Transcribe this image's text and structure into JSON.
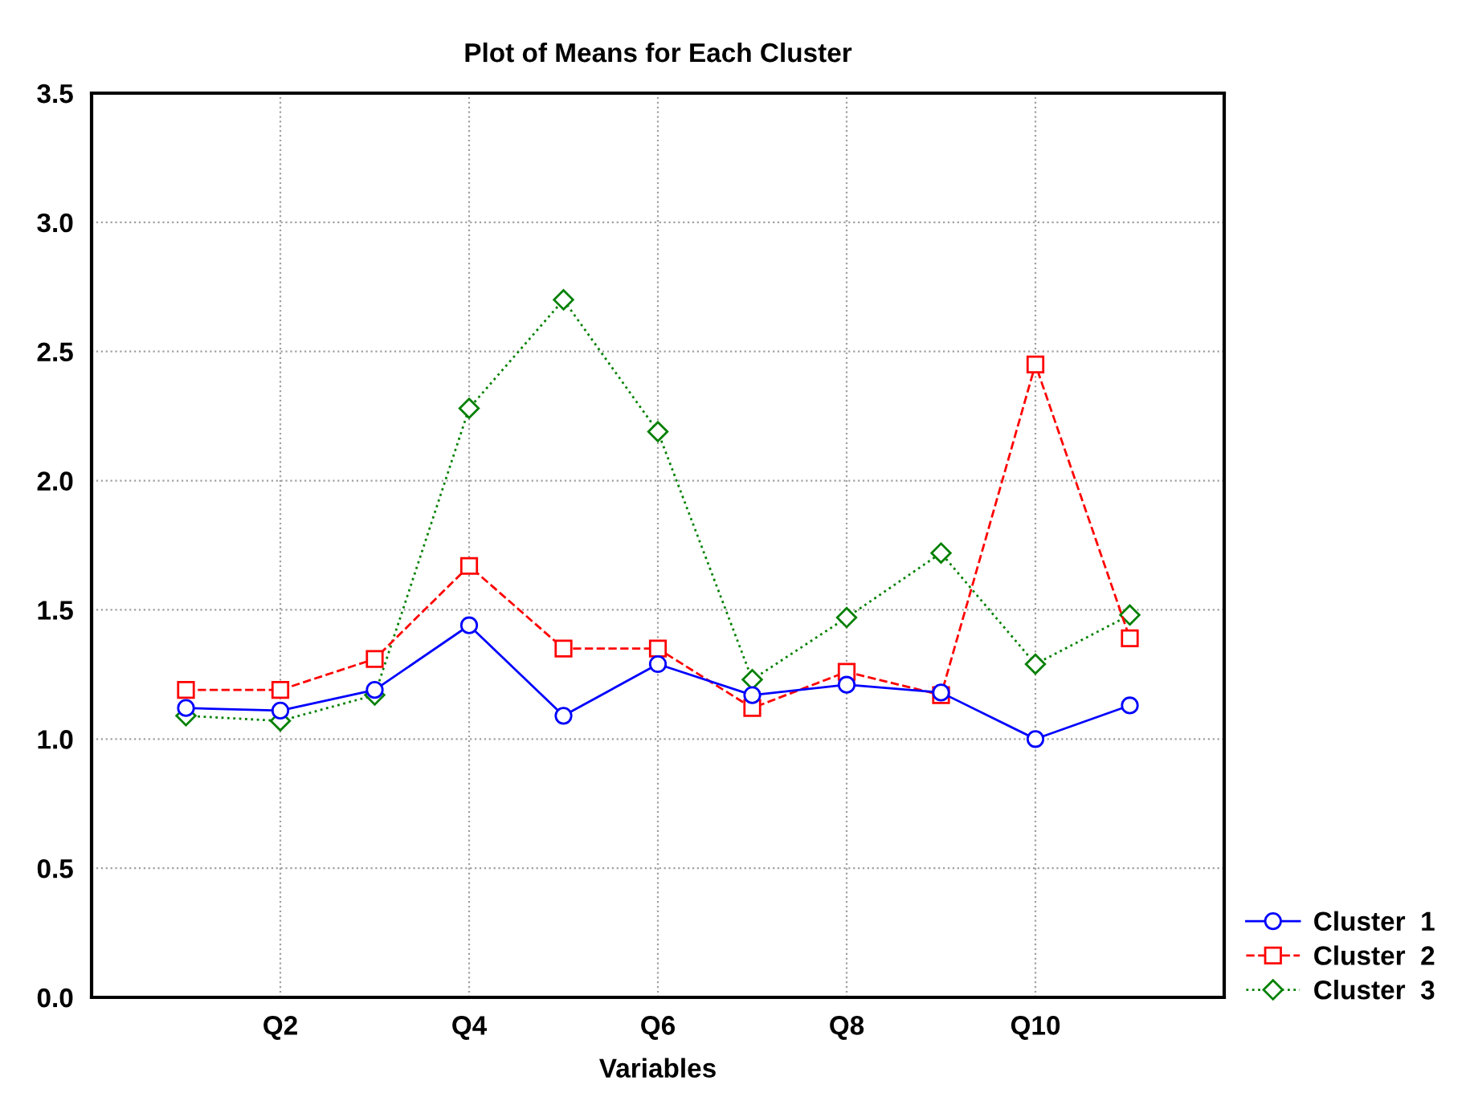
{
  "chart_data": {
    "type": "line",
    "title": "Plot of Means for Each Cluster",
    "xlabel": "Variables",
    "categories": [
      null,
      "Q2",
      null,
      "Q4",
      null,
      "Q6",
      null,
      "Q8",
      null,
      "Q10",
      null
    ],
    "series": [
      {
        "name": "Cluster  1",
        "color": "#0000ff",
        "marker": "circle",
        "line_style": "solid",
        "values": [
          1.12,
          1.11,
          1.19,
          1.44,
          1.09,
          1.29,
          1.17,
          1.21,
          1.18,
          1.0,
          1.13
        ]
      },
      {
        "name": "Cluster  2",
        "color": "#ff0000",
        "marker": "square",
        "line_style": "dashed",
        "values": [
          1.19,
          1.19,
          1.31,
          1.67,
          1.35,
          1.35,
          1.12,
          1.26,
          1.17,
          2.45,
          1.39
        ]
      },
      {
        "name": "Cluster  3",
        "color": "#008000",
        "marker": "diamond",
        "line_style": "dotted",
        "values": [
          1.09,
          1.07,
          1.17,
          2.28,
          2.7,
          2.19,
          1.23,
          1.47,
          1.72,
          1.29,
          1.48
        ]
      }
    ],
    "ylim": [
      0,
      3.5
    ],
    "yticks": [
      {
        "value": 0,
        "label": "0.0"
      },
      {
        "value": 0.5,
        "label": "0.5"
      },
      {
        "value": 1,
        "label": "1.0"
      },
      {
        "value": 1.5,
        "label": "1.5"
      },
      {
        "value": 2,
        "label": "2.0"
      },
      {
        "value": 2.5,
        "label": "2.5"
      },
      {
        "value": 3,
        "label": "3.0"
      },
      {
        "value": 3.5,
        "label": "3.5"
      }
    ],
    "grid": true,
    "legend": "bottom right"
  }
}
